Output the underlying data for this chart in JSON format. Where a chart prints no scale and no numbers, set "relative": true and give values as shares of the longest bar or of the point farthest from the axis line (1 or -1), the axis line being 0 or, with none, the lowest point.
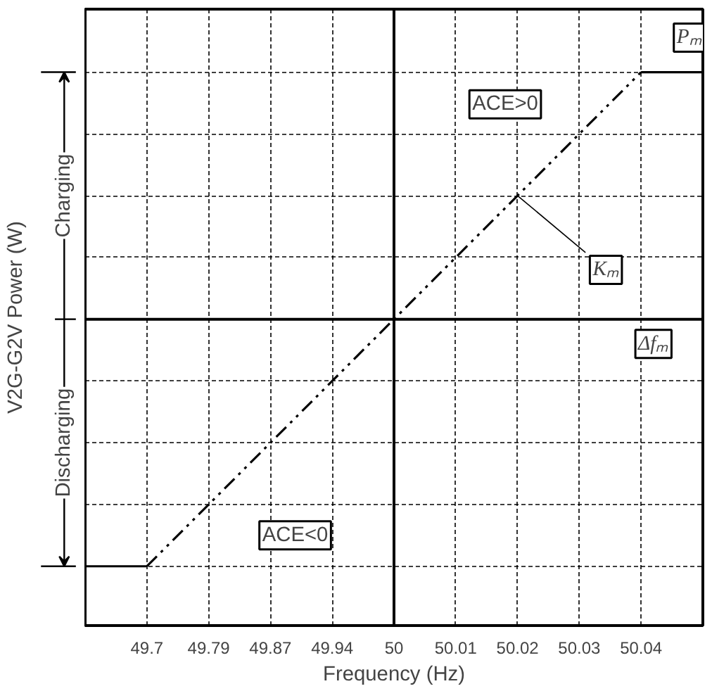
{
  "chart_data": {
    "type": "line",
    "relative": true,
    "xlabel": "Frequency (Hz)",
    "ylabel": "V2G-G2V Power (W)",
    "categories": [
      null,
      "49.7",
      "49.79",
      "49.87",
      "49.94",
      "50",
      "50.01",
      "50.02",
      "50.03",
      "50.04",
      null
    ],
    "series": [
      {
        "color": "#000000",
        "line_style": "dashed",
        "values": [
          null,
          -1,
          -0.75,
          -0.5,
          -0.25,
          0,
          0.25,
          0.5,
          0.75,
          1,
          null
        ]
      },
      {
        "color": "#000000",
        "line_style": "solid",
        "values": [
          -1,
          -1,
          null,
          null,
          null,
          null,
          null,
          null,
          null,
          null,
          null
        ]
      },
      {
        "color": "#000000",
        "line_style": "solid",
        "values": [
          null,
          null,
          null,
          null,
          null,
          null,
          null,
          null,
          null,
          1,
          1
        ]
      }
    ],
    "ref_lines": [
      {
        "axis": "x",
        "value": "50"
      }
    ],
    "annotations": [
      "ACE>0",
      "ACE<0",
      "Pₘ",
      "Kₘ",
      "Δfₘ",
      "Charging",
      "Discharging"
    ],
    "grid": true,
    "marker": "none"
  }
}
